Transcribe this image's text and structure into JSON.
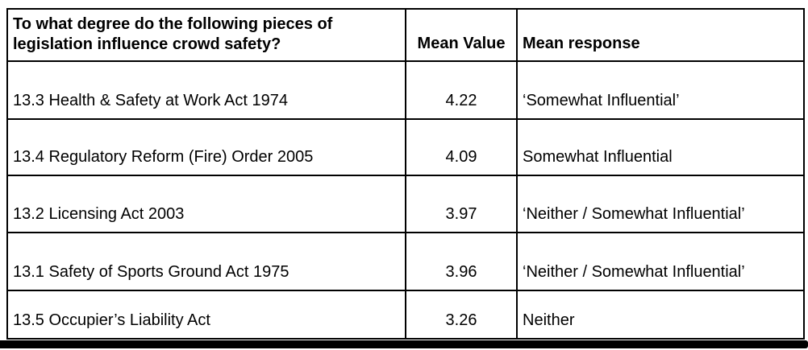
{
  "table": {
    "header": {
      "question": "To what degree do the following pieces of legislation influence crowd safety?",
      "mean_value": "Mean Value",
      "mean_response": "Mean response"
    },
    "rows": [
      {
        "legislation": "13.3 Health & Safety at Work Act 1974",
        "mean_value": "4.22",
        "mean_response": "‘Somewhat Influential’"
      },
      {
        "legislation": "13.4 Regulatory Reform (Fire) Order 2005",
        "mean_value": "4.09",
        "mean_response": "Somewhat Influential"
      },
      {
        "legislation": "13.2 Licensing Act 2003",
        "mean_value": "3.97",
        "mean_response": "‘Neither / Somewhat Influential’"
      },
      {
        "legislation": "13.1 Safety of Sports Ground Act 1975",
        "mean_value": "3.96",
        "mean_response": "‘Neither / Somewhat Influential’"
      },
      {
        "legislation": "13.5 Occupier’s Liability Act",
        "mean_value": "3.26",
        "mean_response": "Neither"
      }
    ]
  },
  "colors": {
    "text": "#000000",
    "border": "#000000",
    "background": "#ffffff",
    "bottom_bar": "#000000"
  }
}
